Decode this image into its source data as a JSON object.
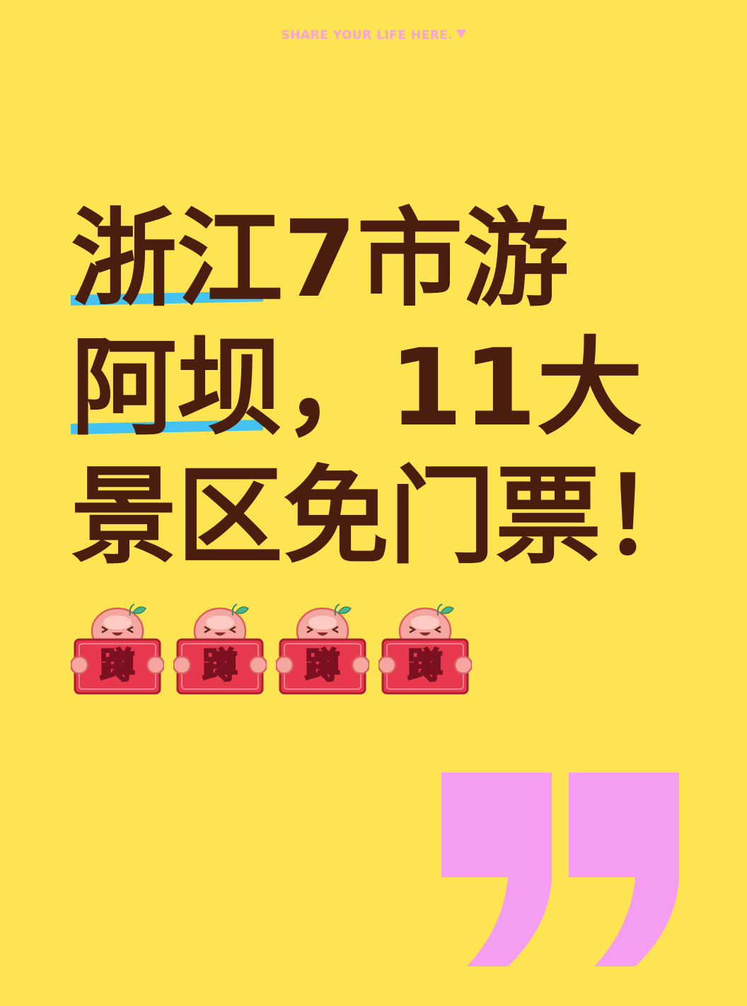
{
  "tagline": "SHARE YOUR LIFE HERE.",
  "headline": {
    "line1_highlight": "浙江",
    "line1_rest": "7市游",
    "line2_highlight": "阿坝",
    "line2_rest": "，11大",
    "line3": "景区免门票！"
  },
  "stickers": [
    {
      "char": "蹲",
      "icon": "peach-mascot-sign-icon"
    },
    {
      "char": "蹲",
      "icon": "peach-mascot-sign-icon"
    },
    {
      "char": "蹲",
      "icon": "peach-mascot-sign-icon"
    },
    {
      "char": "蹲",
      "icon": "peach-mascot-sign-icon"
    }
  ],
  "decoration": {
    "quote_icon": "closing-quote-icon"
  },
  "colors": {
    "background": "#FDE452",
    "text": "#4A1E0F",
    "underline": "#44C3F0",
    "tagline": "#F6A3D6",
    "quote": "#F59DF0",
    "sign": "#E8384D",
    "mascot": "#F6A6A0",
    "leaf": "#4DB38A"
  }
}
